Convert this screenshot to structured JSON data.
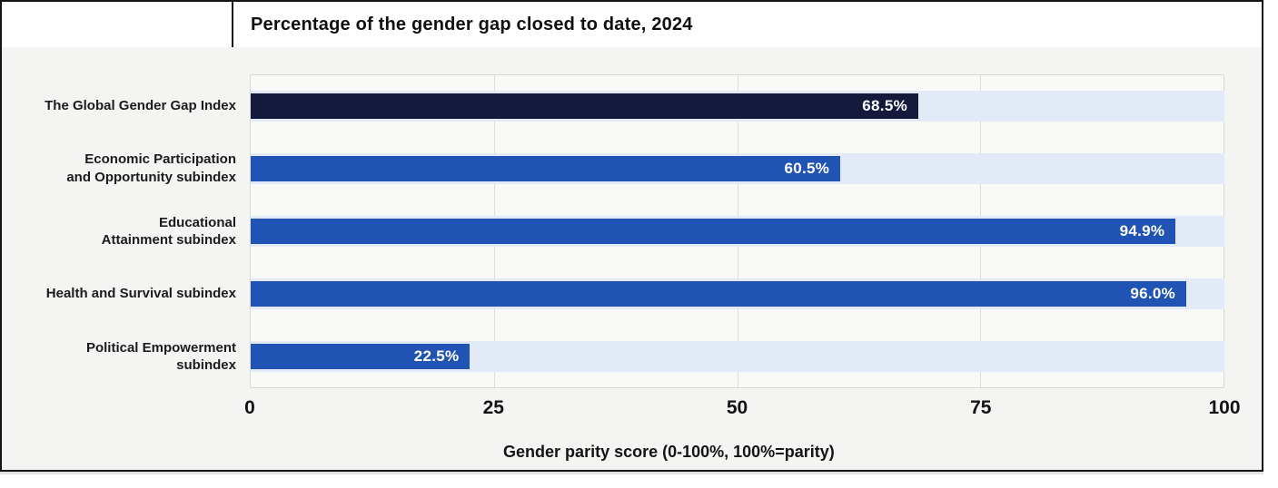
{
  "header": {
    "title": "Percentage of the gender gap closed to date, 2024"
  },
  "chart_data": {
    "type": "bar",
    "orientation": "horizontal",
    "title": "Percentage of the gender gap closed to date, 2024",
    "xlabel": "Gender parity score (0-100%, 100%=parity)",
    "ylabel": "",
    "categories": [
      "The Global Gender Gap Index",
      "Economic Participation\nand Opportunity subindex",
      "Educational\nAttainment subindex",
      "Health and Survival subindex",
      "Political Empowerment\nsubindex"
    ],
    "values": [
      68.5,
      60.5,
      94.9,
      96.0,
      22.5
    ],
    "value_labels": [
      "68.5%",
      "60.5%",
      "94.9%",
      "96.0%",
      "22.5%"
    ],
    "xlim": [
      0,
      100
    ],
    "xticks": [
      "0",
      "25",
      "50",
      "75",
      "100"
    ],
    "grid": true,
    "legend": false,
    "bar_colors": [
      "#151a3c",
      "#2153b4",
      "#2153b4",
      "#2153b4",
      "#2153b4"
    ],
    "track_color": "#e2eaf8"
  },
  "colors": {
    "card_border": "#141414",
    "header_bg": "#ffffff",
    "chart_bg": "#f4f4f2",
    "plot_bg": "#f9f9f7",
    "plot_border": "#d7d7d5",
    "gridline": "#dcdcda",
    "bar_highlight": "#151a3c",
    "bar_default": "#2153b4",
    "bar_track": "#e2eaf8",
    "value_text": "#ffffff",
    "text": "#1b1b1b"
  }
}
